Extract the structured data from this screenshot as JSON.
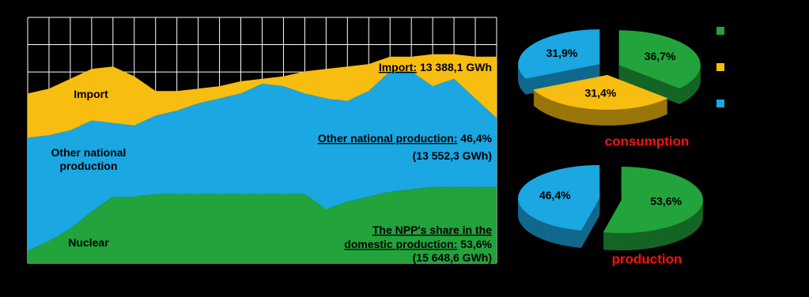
{
  "chart_data": [
    {
      "type": "area",
      "categories": [
        null,
        null,
        null,
        null,
        null,
        null,
        null,
        null,
        null,
        null,
        null,
        null,
        null,
        null,
        null,
        null,
        null,
        null,
        null,
        null,
        null,
        null,
        null
      ],
      "ylim": [
        0,
        100
      ],
      "grid": true,
      "series": [
        {
          "name": "Nuclear",
          "color": "#22a33c",
          "values": [
            5,
            9,
            14,
            21,
            27,
            27,
            28,
            28,
            28,
            28,
            28,
            28,
            28,
            28,
            22,
            25,
            27,
            29,
            30,
            31,
            31,
            31,
            31
          ]
        },
        {
          "name": "Other national production",
          "color": "#1aa7e2",
          "values": [
            46,
            43,
            40,
            37,
            30,
            29,
            32,
            34,
            37,
            39,
            41,
            45,
            44,
            41,
            45,
            41,
            43,
            49,
            48,
            41,
            44,
            36,
            28
          ]
        },
        {
          "name": "Import",
          "color": "#f7bd10",
          "values": [
            18,
            19,
            21,
            21,
            23,
            20,
            10,
            8,
            6,
            5,
            5,
            2,
            4,
            9,
            12,
            14,
            11,
            6,
            6,
            13,
            10,
            17,
            25
          ]
        }
      ],
      "annotations": [
        {
          "underlined": "Import:",
          "text": " 13 388,1 GWh"
        },
        {
          "underlined": "Other national production:",
          "text": " 46,4%"
        },
        {
          "text": "(13 552,3 GWh)"
        },
        {
          "underlined": "The NPP's share in the"
        },
        {
          "underlined": "domestic production:",
          "text": " 53,6%"
        },
        {
          "text": "(15 648,6 GWh)"
        }
      ]
    },
    {
      "type": "pie",
      "title": "consumption",
      "categories": [
        null,
        null,
        null
      ],
      "values": [
        36.7,
        31.4,
        31.9
      ],
      "value_labels": [
        "36,7%",
        "31,4%",
        "31,9%"
      ],
      "colors": [
        "#22a33c",
        "#f7bd10",
        "#1aa7e2"
      ]
    },
    {
      "type": "pie",
      "title": "production",
      "categories": [
        null,
        null
      ],
      "values": [
        53.6,
        46.4
      ],
      "value_labels": [
        "53,6%",
        "46,4%"
      ],
      "colors": [
        "#22a33c",
        "#1aa7e2"
      ]
    }
  ]
}
